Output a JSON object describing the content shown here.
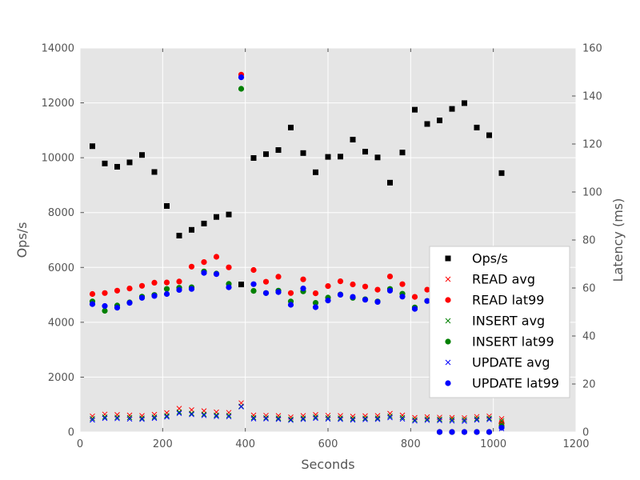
{
  "chart_data": {
    "type": "scatter",
    "xlabel": "Seconds",
    "ylabel_left": "Ops/s",
    "ylabel_right": "Latency (ms)",
    "xlim": [
      0,
      1200
    ],
    "ylim_left": [
      0,
      14000
    ],
    "ylim_right": [
      0,
      160
    ],
    "x_ticks": [
      0,
      200,
      400,
      600,
      800,
      1000,
      1200
    ],
    "y_left_ticks": [
      0,
      2000,
      4000,
      6000,
      8000,
      10000,
      12000,
      14000
    ],
    "y_right_ticks": [
      0,
      20,
      40,
      60,
      80,
      100,
      120,
      140,
      160
    ],
    "grid": true,
    "legend_position": "right",
    "x": [
      30,
      60,
      90,
      120,
      150,
      180,
      210,
      240,
      270,
      300,
      330,
      360,
      390,
      420,
      450,
      480,
      510,
      540,
      570,
      600,
      630,
      660,
      690,
      720,
      750,
      780,
      810,
      840,
      870,
      900,
      930,
      960,
      990,
      1020
    ],
    "series": [
      {
        "name": "Ops/s",
        "axis": "left",
        "marker": "square",
        "color": "#000000",
        "values": [
          10420,
          9790,
          9670,
          9830,
          10100,
          9480,
          8240,
          7160,
          7370,
          7600,
          7840,
          7930,
          5380,
          9990,
          10130,
          10280,
          11100,
          10170,
          9470,
          10030,
          10040,
          10660,
          10220,
          10010,
          9090,
          10190,
          11750,
          11230,
          11360,
          11780,
          11990,
          11100,
          10820,
          9440
        ]
      },
      {
        "name": "READ avg",
        "axis": "right",
        "marker": "x",
        "color": "#ff0000",
        "values": [
          6.6,
          7.4,
          7.2,
          7.0,
          6.8,
          7.3,
          8.0,
          9.8,
          9.2,
          8.8,
          8.3,
          8.1,
          12.1,
          7.0,
          6.9,
          6.8,
          6.2,
          6.8,
          7.2,
          6.9,
          6.8,
          6.5,
          6.7,
          6.8,
          7.7,
          7.0,
          6.0,
          6.3,
          6.1,
          6.0,
          5.9,
          6.4,
          6.6,
          5.5
        ]
      },
      {
        "name": "READ lat99",
        "axis": "right",
        "marker": "circle",
        "color": "#ff0000",
        "values": [
          57.5,
          57.9,
          58.9,
          59.8,
          60.9,
          62.2,
          62.3,
          62.7,
          68.9,
          70.8,
          73.0,
          68.6,
          148.9,
          67.5,
          62.6,
          64.7,
          57.9,
          63.6,
          57.8,
          60.8,
          62.8,
          61.5,
          60.6,
          59.3,
          64.8,
          61.6,
          56.3,
          59.3,
          0,
          0,
          0,
          0,
          0,
          3.6
        ]
      },
      {
        "name": "INSERT avg",
        "axis": "right",
        "marker": "x",
        "color": "#008000",
        "values": [
          5.6,
          6.2,
          6.1,
          6.0,
          5.8,
          6.2,
          6.8,
          8.3,
          7.7,
          7.4,
          7.0,
          6.9,
          10.7,
          6.0,
          5.9,
          5.8,
          5.3,
          5.8,
          6.2,
          5.9,
          5.8,
          5.5,
          5.7,
          5.8,
          6.6,
          6.0,
          5.1,
          5.4,
          5.3,
          5.2,
          5.1,
          5.5,
          5.7,
          4.6
        ]
      },
      {
        "name": "INSERT lat99",
        "axis": "right",
        "marker": "circle",
        "color": "#008000",
        "values": [
          54.4,
          50.5,
          52.7,
          54.0,
          56.4,
          57.1,
          59.6,
          60.1,
          60.3,
          66.9,
          66.0,
          61.7,
          143.0,
          58.8,
          57.9,
          58.9,
          54.4,
          58.6,
          53.8,
          56.0,
          57.3,
          55.9,
          55.3,
          54.4,
          59.6,
          57.6,
          51.9,
          54.6,
          0,
          0,
          0,
          0,
          0,
          2.5
        ]
      },
      {
        "name": "UPDATE avg",
        "axis": "right",
        "marker": "x",
        "color": "#0000ff",
        "values": [
          5.0,
          5.7,
          5.6,
          5.4,
          5.3,
          5.7,
          6.3,
          7.8,
          7.3,
          6.9,
          6.5,
          6.4,
          10.5,
          5.5,
          5.5,
          5.3,
          4.9,
          5.3,
          5.7,
          5.4,
          5.3,
          5.0,
          5.2,
          5.3,
          6.0,
          5.4,
          4.6,
          4.9,
          4.8,
          4.6,
          4.5,
          5.0,
          5.2,
          1.4
        ]
      },
      {
        "name": "UPDATE lat99",
        "axis": "right",
        "marker": "circle",
        "color": "#0000ff",
        "values": [
          53.3,
          52.5,
          51.8,
          53.8,
          55.9,
          56.7,
          57.5,
          59.2,
          59.6,
          66.3,
          65.8,
          60.3,
          147.8,
          61.6,
          57.9,
          58.3,
          53.0,
          59.8,
          52.0,
          54.8,
          57.2,
          56.3,
          55.1,
          54.2,
          58.9,
          56.4,
          51.3,
          54.6,
          0,
          0,
          0,
          0,
          0,
          1.8
        ]
      }
    ]
  }
}
